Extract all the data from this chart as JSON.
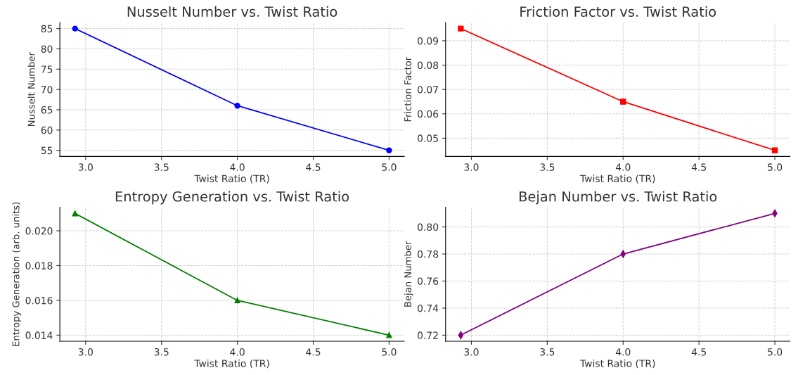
{
  "chart_data": [
    {
      "type": "line",
      "title": "Nusselt Number vs. Twist Ratio",
      "xlabel": "Twist Ratio (TR)",
      "ylabel": "Nusselt Number",
      "x": [
        2.93,
        4.0,
        5.0
      ],
      "series": [
        {
          "color": "#0000ff",
          "values": [
            85,
            66,
            55
          ]
        }
      ],
      "marker": "circle",
      "grid": true,
      "xlim": [
        2.83,
        5.1
      ],
      "xticks": [
        {
          "value": 3.0,
          "label": "3.0"
        },
        {
          "value": 3.5,
          "label": "3.5"
        },
        {
          "value": 4.0,
          "label": "4.0"
        },
        {
          "value": 4.5,
          "label": "4.5"
        },
        {
          "value": 5.0,
          "label": "5.0"
        }
      ],
      "ylim": [
        53.5,
        86.5
      ],
      "yticks": [
        55,
        60,
        65,
        70,
        75,
        80,
        85
      ]
    },
    {
      "type": "line",
      "title": "Friction Factor vs. Twist Ratio",
      "xlabel": "Twist Ratio (TR)",
      "ylabel": "Friction Factor",
      "x": [
        2.93,
        4.0,
        5.0
      ],
      "series": [
        {
          "color": "#ff0000",
          "values": [
            0.095,
            0.065,
            0.045
          ]
        }
      ],
      "marker": "square",
      "grid": true,
      "xlim": [
        2.83,
        5.1
      ],
      "xticks": [
        {
          "value": 3.0,
          "label": "3.0"
        },
        {
          "value": 3.5,
          "label": "3.5"
        },
        {
          "value": 4.0,
          "label": "4.0"
        },
        {
          "value": 4.5,
          "label": "4.5"
        },
        {
          "value": 5.0,
          "label": "5.0"
        }
      ],
      "ylim": [
        0.0425,
        0.0975
      ],
      "yticks": [
        {
          "value": 0.05,
          "label": "0.05"
        },
        {
          "value": 0.06,
          "label": "0.06"
        },
        {
          "value": 0.07,
          "label": "0.07"
        },
        {
          "value": 0.08,
          "label": "0.08"
        },
        {
          "value": 0.09,
          "label": "0.09"
        }
      ]
    },
    {
      "type": "line",
      "title": "Entropy Generation vs. Twist Ratio",
      "xlabel": "Twist Ratio (TR)",
      "ylabel": "Entropy Generation (arb. units)",
      "x": [
        2.93,
        4.0,
        5.0
      ],
      "series": [
        {
          "color": "#008000",
          "values": [
            0.021,
            0.016,
            0.014
          ]
        }
      ],
      "marker": "triangle",
      "grid": true,
      "xlim": [
        2.83,
        5.1
      ],
      "xticks": [
        {
          "value": 3.0,
          "label": "3.0"
        },
        {
          "value": 3.5,
          "label": "3.5"
        },
        {
          "value": 4.0,
          "label": "4.0"
        },
        {
          "value": 4.5,
          "label": "4.5"
        },
        {
          "value": 5.0,
          "label": "5.0"
        }
      ],
      "ylim": [
        0.01365,
        0.02135
      ],
      "yticks": [
        {
          "value": 0.014,
          "label": "0.014"
        },
        {
          "value": 0.016,
          "label": "0.016"
        },
        {
          "value": 0.018,
          "label": "0.018"
        },
        {
          "value": 0.02,
          "label": "0.020"
        }
      ]
    },
    {
      "type": "line",
      "title": "Bejan Number vs. Twist Ratio",
      "xlabel": "Twist Ratio (TR)",
      "ylabel": "Bejan Number",
      "x": [
        2.93,
        4.0,
        5.0
      ],
      "series": [
        {
          "color": "#800080",
          "values": [
            0.72,
            0.78,
            0.81
          ]
        }
      ],
      "marker": "diamond",
      "grid": true,
      "xlim": [
        2.83,
        5.1
      ],
      "xticks": [
        {
          "value": 3.0,
          "label": "3.0"
        },
        {
          "value": 3.5,
          "label": "3.5"
        },
        {
          "value": 4.0,
          "label": "4.0"
        },
        {
          "value": 4.5,
          "label": "4.5"
        },
        {
          "value": 5.0,
          "label": "5.0"
        }
      ],
      "ylim": [
        0.7155,
        0.8145
      ],
      "yticks": [
        {
          "value": 0.72,
          "label": "0.72"
        },
        {
          "value": 0.74,
          "label": "0.74"
        },
        {
          "value": 0.76,
          "label": "0.76"
        },
        {
          "value": 0.78,
          "label": "0.78"
        },
        {
          "value": 0.8,
          "label": "0.80"
        }
      ]
    }
  ]
}
